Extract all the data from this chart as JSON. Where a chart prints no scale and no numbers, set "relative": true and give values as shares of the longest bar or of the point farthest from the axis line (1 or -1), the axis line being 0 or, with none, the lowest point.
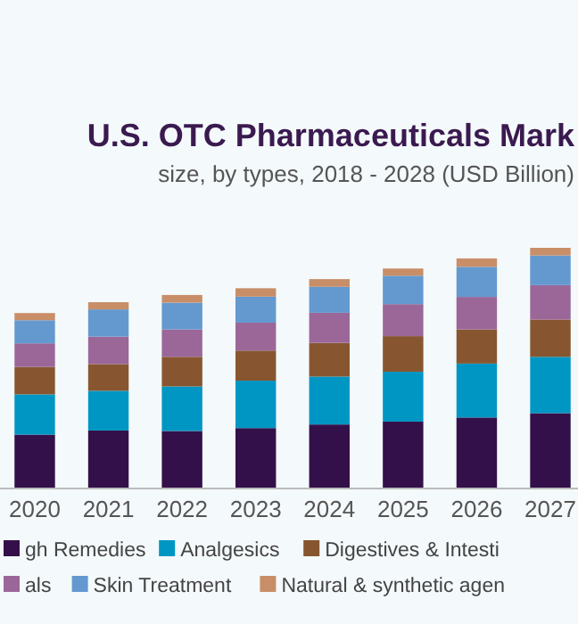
{
  "chart_data": {
    "type": "bar",
    "stacked": true,
    "relative": true,
    "title": "U.S. OTC Pharmaceuticals Mark",
    "subtitle": "size, by types, 2018 - 2028 (USD Billion)",
    "categories": [
      "2020",
      "2021",
      "2022",
      "2023",
      "2024",
      "2025",
      "2026",
      "2027"
    ],
    "legend": "bottom",
    "series": [
      {
        "name": "gh Remedies",
        "color": "#34104a",
        "values": [
          0.224,
          0.241,
          0.239,
          0.251,
          0.266,
          0.278,
          0.295,
          0.313
        ]
      },
      {
        "name": "Analgesics",
        "color": "#0096c4",
        "values": [
          0.167,
          0.165,
          0.185,
          0.197,
          0.199,
          0.207,
          0.224,
          0.234
        ]
      },
      {
        "name": "Digestives & Intesti",
        "color": "#875630",
        "values": [
          0.114,
          0.111,
          0.123,
          0.125,
          0.14,
          0.148,
          0.142,
          0.155
        ]
      },
      {
        "name": "als",
        "color": "#9b6799",
        "values": [
          0.098,
          0.114,
          0.114,
          0.116,
          0.125,
          0.133,
          0.135,
          0.143
        ]
      },
      {
        "name": "Skin Treatment",
        "color": "#6399cf",
        "values": [
          0.096,
          0.113,
          0.111,
          0.108,
          0.108,
          0.118,
          0.125,
          0.123
        ]
      },
      {
        "name": "Natural & synthetic agen",
        "color": "#c88e68",
        "values": [
          0.03,
          0.03,
          0.032,
          0.035,
          0.032,
          0.03,
          0.035,
          0.032
        ]
      }
    ]
  }
}
